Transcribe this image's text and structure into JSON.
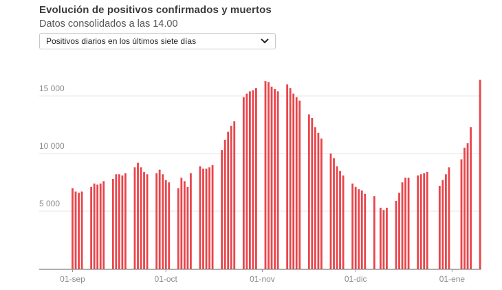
{
  "title": "Evolución de positivos confirmados y muertos",
  "subtitle": "Datos consolidados a las 14.00",
  "selector": {
    "selected": "Positivos diarios en los últimos siete días",
    "icon": "chevron-down-icon"
  },
  "chart_data": {
    "type": "bar",
    "title": "",
    "xlabel": "",
    "ylabel": "",
    "ylim": [
      0,
      17000
    ],
    "y_ticks": [
      {
        "value": 5000,
        "label": "5 000"
      },
      {
        "value": 10000,
        "label": "10 000"
      },
      {
        "value": 15000,
        "label": "15 000"
      }
    ],
    "x_ticks": [
      {
        "index": 0,
        "label": "01-sep"
      },
      {
        "index": 30,
        "label": "01-oct"
      },
      {
        "index": 61,
        "label": "01-nov"
      },
      {
        "index": 91,
        "label": "01-dic"
      },
      {
        "index": 122,
        "label": "01-ene"
      }
    ],
    "grid": true,
    "bar_color": "#e8454b",
    "values": [
      7000,
      6700,
      6600,
      6700,
      null,
      null,
      7100,
      7400,
      7300,
      7400,
      7600,
      null,
      null,
      7800,
      8200,
      8200,
      8100,
      8300,
      null,
      null,
      8800,
      9200,
      8800,
      8400,
      8200,
      null,
      null,
      8300,
      8600,
      8200,
      7700,
      7500,
      null,
      null,
      7000,
      7900,
      7600,
      7100,
      8300,
      null,
      null,
      8900,
      8700,
      8700,
      8800,
      9000,
      null,
      null,
      10300,
      11200,
      11900,
      12400,
      12800,
      null,
      null,
      14900,
      15200,
      15400,
      15500,
      15700,
      null,
      null,
      16300,
      16200,
      15800,
      15600,
      15400,
      null,
      null,
      16000,
      15700,
      15200,
      14900,
      14600,
      null,
      null,
      13400,
      13100,
      12300,
      11800,
      11300,
      null,
      null,
      10000,
      9600,
      8900,
      8500,
      8100,
      null,
      null,
      7400,
      7100,
      6900,
      6800,
      6500,
      null,
      null,
      6300,
      null,
      5300,
      5100,
      5300,
      null,
      null,
      5900,
      6600,
      7500,
      7900,
      7900,
      null,
      null,
      8100,
      8200,
      8300,
      8400,
      null,
      null,
      null,
      7200,
      7700,
      8200,
      8800,
      null,
      null,
      null,
      9500,
      10500,
      10900,
      12300,
      null,
      null,
      16400
    ]
  }
}
